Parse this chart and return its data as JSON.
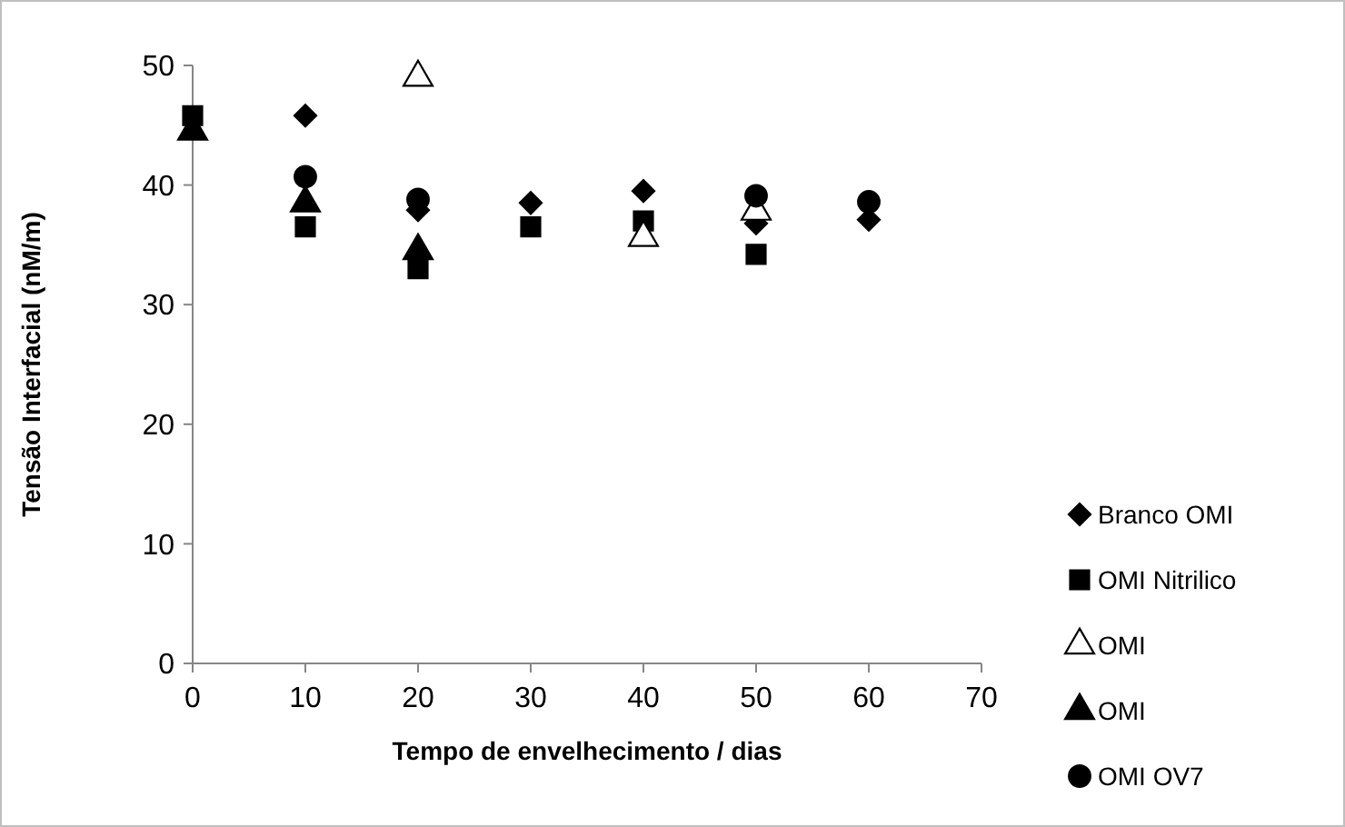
{
  "chart_data": {
    "type": "scatter",
    "xlabel": "Tempo de envelhecimento / dias",
    "ylabel": "Tensão Interfacial (nM/m)",
    "x": [
      0,
      10,
      20,
      30,
      40,
      50,
      60
    ],
    "xlim": [
      0,
      70
    ],
    "xticks": [
      0,
      10,
      20,
      30,
      40,
      50,
      60,
      70
    ],
    "ylim": [
      0,
      50
    ],
    "yticks": [
      0,
      10,
      20,
      30,
      40,
      50
    ],
    "legend": "right",
    "series": [
      {
        "name": "Branco OMI",
        "color": "#000000",
        "marker": "diamond",
        "values": [
          null,
          45.8,
          37.9,
          38.5,
          39.5,
          36.8,
          37.1
        ]
      },
      {
        "name": "OMI Nitrilico",
        "color": "#000000",
        "marker": "square",
        "values": [
          45.8,
          36.5,
          33,
          36.5,
          37,
          34.2,
          null
        ]
      },
      {
        "name": "OMI",
        "color": "#ffffff",
        "marker": "triangle",
        "values": [
          null,
          null,
          49,
          null,
          35.6,
          37.8,
          null
        ]
      },
      {
        "name": "OMI",
        "color": "#000000",
        "marker": "triangle",
        "values": [
          44.5,
          38.5,
          34.5,
          null,
          null,
          null,
          null
        ]
      },
      {
        "name": "OMI OV7",
        "color": "#000000",
        "marker": "circle",
        "values": [
          null,
          40.7,
          38.8,
          null,
          null,
          39.1,
          38.6
        ]
      }
    ]
  }
}
